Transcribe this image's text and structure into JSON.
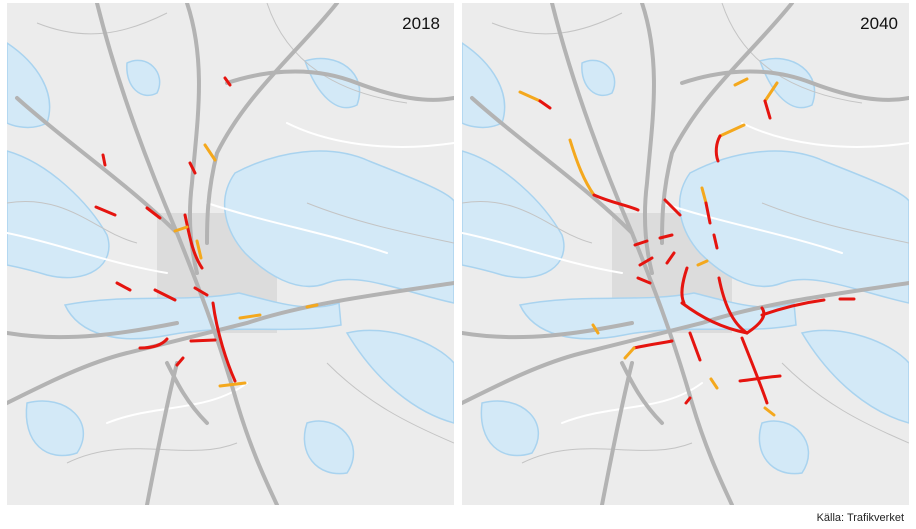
{
  "panels": [
    {
      "year": "2018"
    },
    {
      "year": "2040"
    }
  ],
  "source": "Källa: Trafikverket"
}
